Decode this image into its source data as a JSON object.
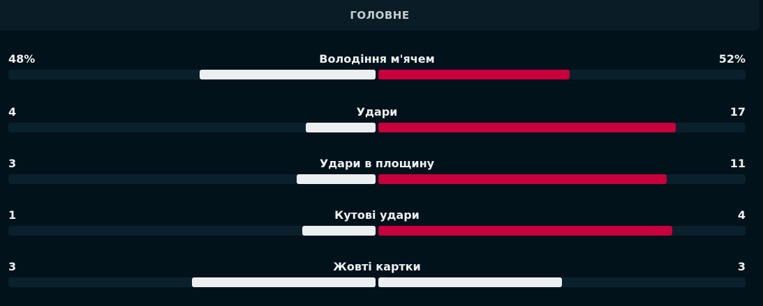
{
  "header": {
    "title": "ГОЛОВНЕ"
  },
  "colors": {
    "home": "#eceff0",
    "away": "#c8003c",
    "away_equal": "#eceff0"
  },
  "stats": [
    {
      "name": "Володіння м'ячем",
      "home": "48%",
      "away": "52%",
      "home_value": 48,
      "away_value": 52
    },
    {
      "name": "Удари",
      "home": "4",
      "away": "17",
      "home_value": 4,
      "away_value": 17
    },
    {
      "name": "Удари в площину",
      "home": "3",
      "away": "11",
      "home_value": 3,
      "away_value": 11
    },
    {
      "name": "Кутові удари",
      "home": "1",
      "away": "4",
      "home_value": 1,
      "away_value": 4
    },
    {
      "name": "Жовті картки",
      "home": "3",
      "away": "3",
      "home_value": 3,
      "away_value": 3
    }
  ]
}
